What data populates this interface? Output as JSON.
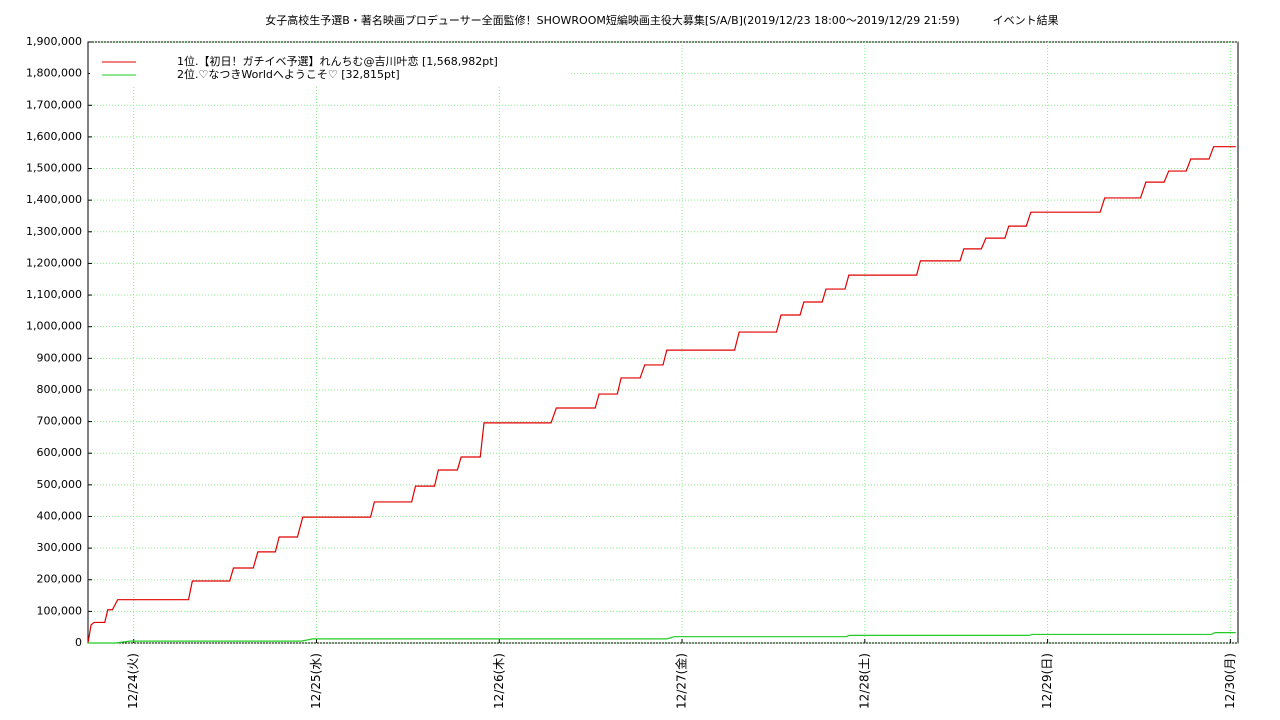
{
  "chart_data": {
    "type": "line",
    "title": "女子高校生予選B・著名映画プロデューサー全面監修！SHOWROOM短編映画主役大募集[S/A/B](2019/12/23 18:00〜2019/12/29 21:59)　　　イベント結果",
    "xlim": [
      -6,
      145
    ],
    "xticks": [
      {
        "value": 0,
        "label": "12/24(火)"
      },
      {
        "value": 24,
        "label": "12/25(水)"
      },
      {
        "value": 48,
        "label": "12/26(木)"
      },
      {
        "value": 72,
        "label": "12/27(金)"
      },
      {
        "value": 96,
        "label": "12/28(土)"
      },
      {
        "value": 120,
        "label": "12/29(日)"
      },
      {
        "value": 144,
        "label": "12/30(月)"
      }
    ],
    "ylim": [
      0,
      1900000
    ],
    "yticks": [
      0,
      {
        "value": 100000,
        "label": "100,000"
      },
      {
        "value": 200000,
        "label": "200,000"
      },
      {
        "value": 300000,
        "label": "300,000"
      },
      {
        "value": 400000,
        "label": "400,000"
      },
      {
        "value": 500000,
        "label": "500,000"
      },
      {
        "value": 600000,
        "label": "600,000"
      },
      {
        "value": 700000,
        "label": "700,000"
      },
      {
        "value": 800000,
        "label": "800,000"
      },
      {
        "value": 900000,
        "label": "900,000"
      },
      {
        "value": 1000000,
        "label": "1,000,000"
      },
      {
        "value": 1100000,
        "label": "1,100,000"
      },
      {
        "value": 1200000,
        "label": "1,200,000"
      },
      {
        "value": 1300000,
        "label": "1,300,000"
      },
      {
        "value": 1400000,
        "label": "1,400,000"
      },
      {
        "value": 1500000,
        "label": "1,500,000"
      },
      {
        "value": 1600000,
        "label": "1,600,000"
      },
      {
        "value": 1700000,
        "label": "1,700,000"
      },
      {
        "value": 1800000,
        "label": "1,800,000"
      },
      {
        "value": 1900000,
        "label": "1,900,000"
      }
    ],
    "grid": true,
    "legend": "upper-left",
    "series": [
      {
        "name": "1位.【初日！ガチイベ予選】れんちむ@吉川叶恋 [1,568,982pt]",
        "color": "#e00000",
        "x": [
          -6,
          -5.6,
          -5.2,
          -3.8,
          -3.4,
          -2.8,
          -2.1,
          7.2,
          7.7,
          12.6,
          13.1,
          15.7,
          16.3,
          18.6,
          19.1,
          21.5,
          22.2,
          31.1,
          31.6,
          36.5,
          37.0,
          39.5,
          40.0,
          42.5,
          43.0,
          45.5,
          46.0,
          54.8,
          55.5,
          60.6,
          61.1,
          63.5,
          64.0,
          66.5,
          67.1,
          69.5,
          70.0,
          78.9,
          79.5,
          84.4,
          85.0,
          87.5,
          88.0,
          90.4,
          90.9,
          93.4,
          93.9,
          102.8,
          103.3,
          108.5,
          109.0,
          111.3,
          111.9,
          114.4,
          114.9,
          117.2,
          117.8,
          126.9,
          127.5,
          132.2,
          132.9,
          135.3,
          135.9,
          138.2,
          138.8,
          141.2,
          141.8,
          144.7
        ],
        "values": [
          0,
          57000,
          65000,
          65000,
          105000,
          105000,
          137000,
          137000,
          196000,
          196000,
          237000,
          237000,
          288000,
          288000,
          335000,
          335000,
          398000,
          398000,
          446000,
          446000,
          496000,
          496000,
          547000,
          547000,
          588000,
          588000,
          696000,
          696000,
          743000,
          743000,
          787000,
          787000,
          838000,
          838000,
          879000,
          879000,
          926000,
          926000,
          983000,
          983000,
          1037000,
          1037000,
          1078000,
          1078000,
          1119000,
          1119000,
          1163000,
          1163000,
          1208000,
          1208000,
          1246000,
          1246000,
          1280000,
          1280000,
          1318000,
          1318000,
          1362000,
          1362000,
          1407000,
          1407000,
          1457000,
          1457000,
          1492000,
          1492000,
          1530000,
          1530000,
          1568982,
          1568982
        ]
      },
      {
        "name": "2位.♡なつきWorldへようこそ♡ [32,815pt]",
        "color": "#22cc22",
        "x": [
          -6,
          -2.4,
          -0.5,
          22.0,
          23.5,
          70,
          71,
          93.5,
          94,
          117.5,
          118,
          141.5,
          142,
          144.7
        ],
        "values": [
          0,
          0,
          6000,
          6000,
          13000,
          13000,
          20000,
          20000,
          24000,
          24000,
          27000,
          27000,
          32815,
          32815
        ]
      }
    ]
  }
}
